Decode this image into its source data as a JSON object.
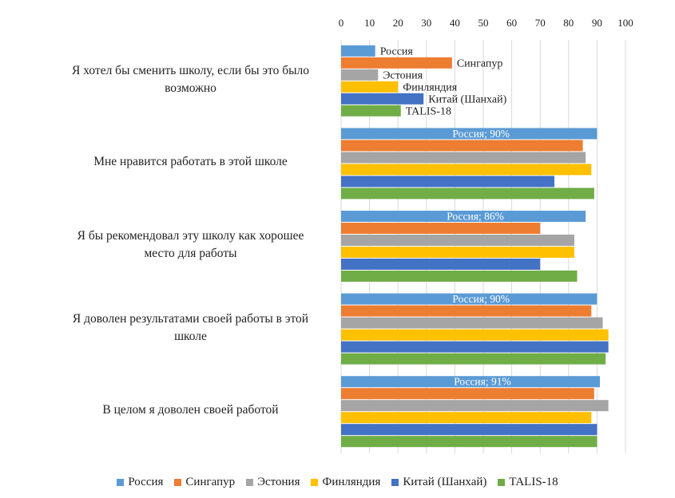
{
  "chart_data": {
    "type": "bar",
    "orientation": "horizontal",
    "title": "",
    "xlabel": "",
    "ylabel": "",
    "xlim": [
      0,
      100
    ],
    "ticks": [
      "0",
      "10",
      "20",
      "30",
      "40",
      "50",
      "60",
      "70",
      "80",
      "90",
      "100"
    ],
    "grid": true,
    "legend_position": "bottom",
    "categories": [
      [
        "Я хотел бы сменить школу, если бы это было",
        "возможно"
      ],
      [
        "Мне нравится работать в этой школе"
      ],
      [
        "Я бы рекомендовал эту школу как хорошее",
        "место для работы"
      ],
      [
        "Я доволен результатами своей работы в этой",
        "школе"
      ],
      [
        "В целом я доволен своей работой"
      ]
    ],
    "series": [
      {
        "name": "Россия",
        "color": "#5b9bd5",
        "values": [
          12,
          90,
          86,
          90,
          91
        ]
      },
      {
        "name": "Сингапур",
        "color": "#ed7d31",
        "values": [
          39,
          85,
          70,
          88,
          89
        ]
      },
      {
        "name": "Эстония",
        "color": "#a5a5a5",
        "values": [
          13,
          86,
          82,
          92,
          94
        ]
      },
      {
        "name": "Финляндия",
        "color": "#ffc000",
        "values": [
          20,
          88,
          82,
          94,
          88
        ]
      },
      {
        "name": "Китай (Шанхай)",
        "color": "#4472c4",
        "values": [
          29,
          75,
          70,
          94,
          90
        ]
      },
      {
        "name": "TALIS-18",
        "color": "#70ad47",
        "values": [
          21,
          89,
          83,
          93,
          90
        ]
      }
    ],
    "data_labels": {
      "group0": [
        "Россия",
        "Сингапур",
        "Эстония",
        "Финляндия",
        "Китай (Шанхай)",
        "TALIS-18"
      ],
      "group1": "Россия; 90%",
      "group2": "Россия; 86%",
      "group3": "Россия; 90%",
      "group4": "Россия; 91%"
    }
  }
}
